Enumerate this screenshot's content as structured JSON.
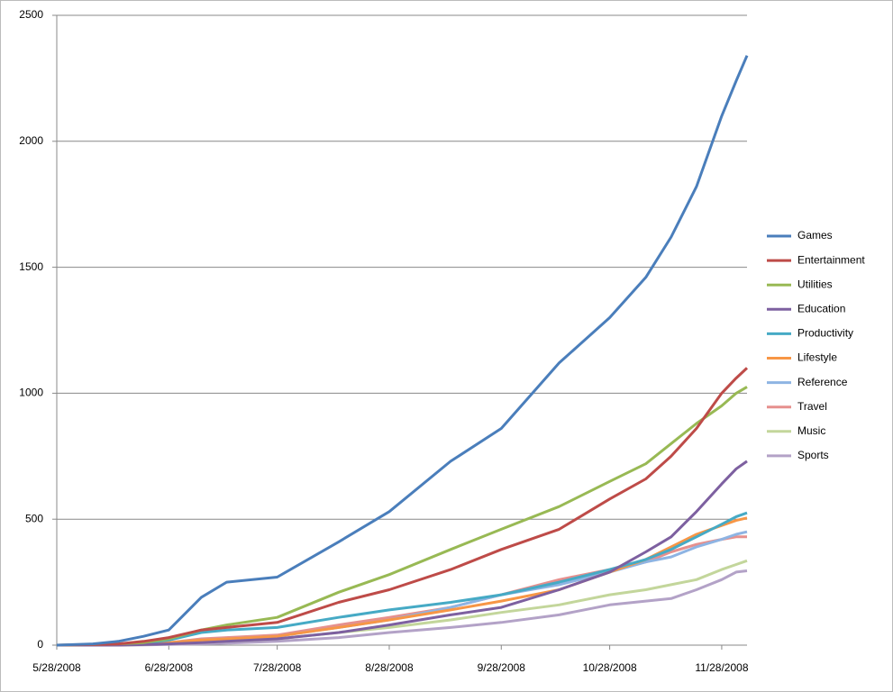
{
  "chart_data": {
    "type": "line",
    "x": [
      "5/28/2008",
      "6/7/2008",
      "6/14/2008",
      "6/21/2008",
      "6/28/2008",
      "7/7/2008",
      "7/14/2008",
      "7/28/2008",
      "8/14/2008",
      "8/28/2008",
      "9/14/2008",
      "9/28/2008",
      "10/14/2008",
      "10/28/2008",
      "11/7/2008",
      "11/14/2008",
      "11/21/2008",
      "11/28/2008",
      "12/2/2008",
      "12/5/2008"
    ],
    "xlim": [
      "5/28/2008",
      "12/5/2008"
    ],
    "xticks": [
      "5/28/2008",
      "6/28/2008",
      "7/28/2008",
      "8/28/2008",
      "9/28/2008",
      "10/28/2008",
      "11/28/2008"
    ],
    "ylim": [
      0,
      2500
    ],
    "yticks": [
      0,
      500,
      1000,
      1500,
      2000,
      2500
    ],
    "grid": true,
    "legend": "right",
    "series": [
      {
        "name": "Games",
        "color": "#4a7ebb",
        "values": [
          0,
          5,
          15,
          35,
          60,
          190,
          250,
          270,
          410,
          530,
          730,
          860,
          1120,
          1300,
          1460,
          1620,
          1820,
          2100,
          2240,
          2340
        ]
      },
      {
        "name": "Entertainment",
        "color": "#be4b48",
        "values": [
          0,
          2,
          5,
          15,
          30,
          60,
          70,
          90,
          170,
          220,
          300,
          380,
          460,
          580,
          660,
          750,
          860,
          1000,
          1060,
          1100
        ]
      },
      {
        "name": "Utilities",
        "color": "#98b954",
        "values": [
          0,
          2,
          5,
          10,
          25,
          60,
          80,
          110,
          210,
          280,
          380,
          460,
          550,
          650,
          720,
          800,
          880,
          950,
          1000,
          1025
        ]
      },
      {
        "name": "Education",
        "color": "#7d60a0",
        "values": [
          0,
          0,
          0,
          2,
          5,
          10,
          15,
          25,
          50,
          80,
          120,
          150,
          220,
          290,
          370,
          430,
          530,
          640,
          700,
          730
        ]
      },
      {
        "name": "Productivity",
        "color": "#46aac5",
        "values": [
          0,
          0,
          2,
          8,
          20,
          50,
          60,
          70,
          110,
          140,
          170,
          200,
          250,
          300,
          340,
          380,
          430,
          480,
          510,
          525
        ]
      },
      {
        "name": "Lifestyle",
        "color": "#f79646",
        "values": [
          0,
          0,
          0,
          5,
          10,
          20,
          25,
          35,
          70,
          100,
          140,
          175,
          220,
          290,
          340,
          390,
          440,
          475,
          495,
          505
        ]
      },
      {
        "name": "Reference",
        "color": "#8eb4e3",
        "values": [
          0,
          0,
          0,
          5,
          10,
          20,
          25,
          35,
          70,
          100,
          150,
          200,
          240,
          290,
          330,
          350,
          390,
          420,
          440,
          450
        ]
      },
      {
        "name": "Travel",
        "color": "#e6908e",
        "values": [
          0,
          0,
          0,
          5,
          10,
          25,
          30,
          40,
          80,
          110,
          150,
          200,
          260,
          300,
          330,
          370,
          400,
          420,
          430,
          430
        ]
      },
      {
        "name": "Music",
        "color": "#c3d69b",
        "values": [
          0,
          0,
          0,
          2,
          5,
          10,
          15,
          25,
          50,
          70,
          100,
          130,
          160,
          200,
          220,
          240,
          260,
          300,
          320,
          335
        ]
      },
      {
        "name": "Sports",
        "color": "#b3a2c7",
        "values": [
          0,
          0,
          0,
          1,
          3,
          5,
          8,
          15,
          30,
          50,
          70,
          90,
          120,
          160,
          175,
          185,
          220,
          260,
          290,
          295
        ]
      }
    ]
  }
}
